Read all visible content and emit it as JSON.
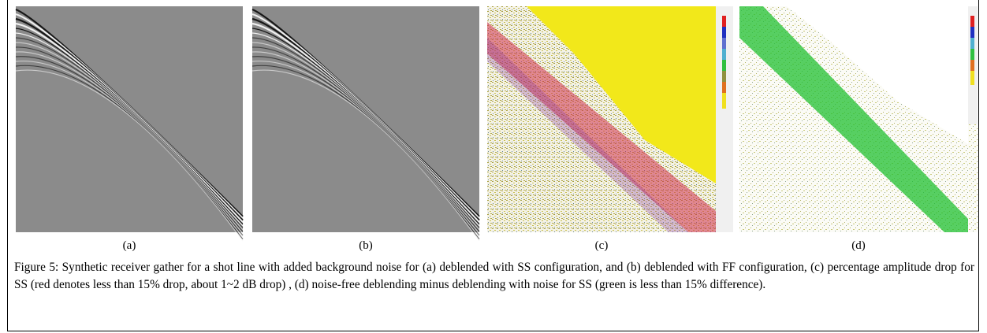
{
  "figure": {
    "panels": [
      {
        "label": "(a)"
      },
      {
        "label": "(b)"
      },
      {
        "label": "(c)"
      },
      {
        "label": "(d)"
      }
    ],
    "caption": "Figure 5:  Synthetic receiver gather for a shot line with added background noise for (a) deblended with SS configuration, and (b) deblended with FF configuration, (c) percentage amplitude drop for SS (red denotes less than 15% drop, about 1~2 dB drop) , (d) noise-free deblending minus deblending with noise for SS (green is less than 15% difference)."
  }
}
